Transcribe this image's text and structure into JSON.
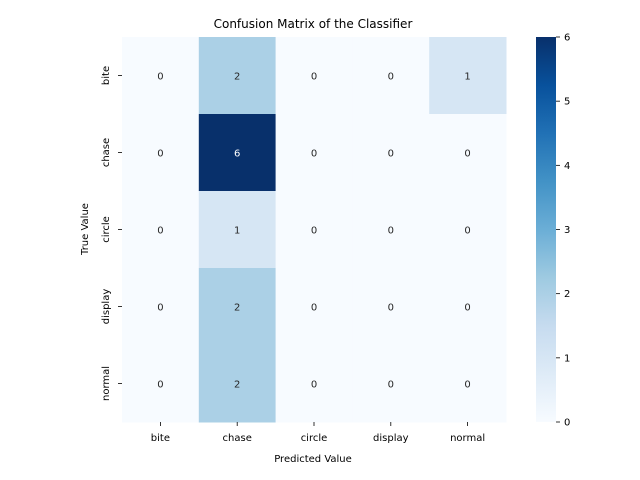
{
  "chart_data": {
    "type": "heatmap",
    "title": "Confusion Matrix of the Classifier",
    "xlabel": "Predicted Value",
    "ylabel": "True Value",
    "x_categories": [
      "bite",
      "chase",
      "circle",
      "display",
      "normal"
    ],
    "y_categories": [
      "bite",
      "chase",
      "circle",
      "display",
      "normal"
    ],
    "values": [
      [
        0,
        2,
        0,
        0,
        1
      ],
      [
        0,
        6,
        0,
        0,
        0
      ],
      [
        0,
        1,
        0,
        0,
        0
      ],
      [
        0,
        2,
        0,
        0,
        0
      ],
      [
        0,
        2,
        0,
        0,
        0
      ]
    ],
    "colorbar": {
      "min": 0,
      "max": 6,
      "ticks": [
        "0",
        "1",
        "2",
        "3",
        "4",
        "5",
        "6"
      ],
      "colormap": "Blues"
    },
    "annotations": true
  }
}
